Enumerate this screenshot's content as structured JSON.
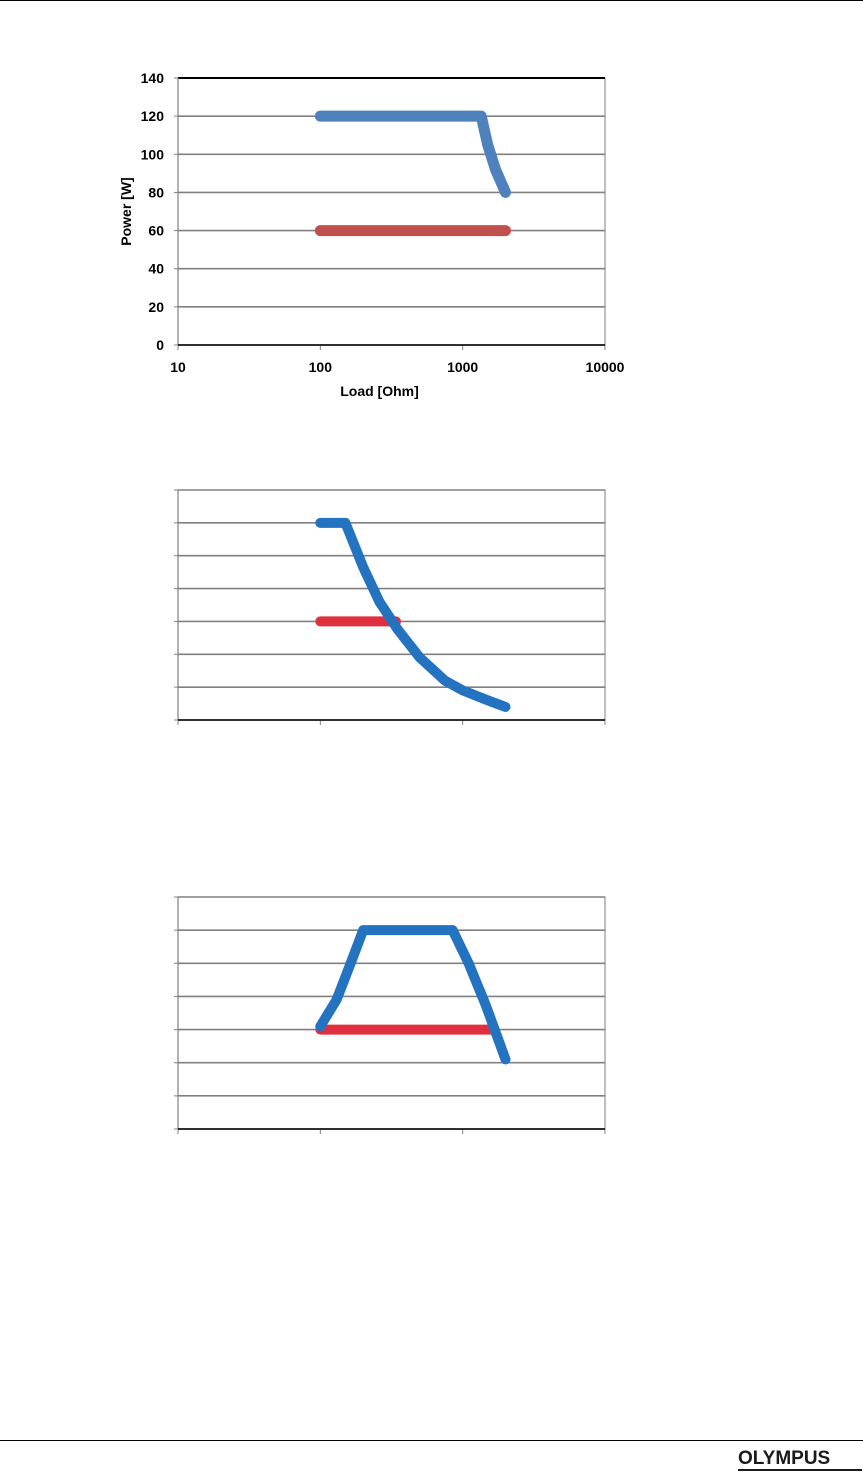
{
  "logo": {
    "text": "OLYMPUS"
  },
  "chart_data": [
    {
      "type": "line",
      "xscale": "log",
      "xlim": [
        10,
        10000
      ],
      "ylim": [
        0,
        140
      ],
      "yticks": [
        0,
        20,
        40,
        60,
        80,
        100,
        120,
        140
      ],
      "xticks": [
        10,
        100,
        1000,
        10000
      ],
      "xtick_labels": [
        "10",
        "100",
        "1000",
        "10000"
      ],
      "ytick_labels": [
        "0",
        "20",
        "40",
        "60",
        "80",
        "100",
        "120",
        "140"
      ],
      "xlabel": "Load [Ohm]",
      "ylabel": "Power [W]",
      "grid": true,
      "series": [
        {
          "color": "#4f81bd",
          "x": [
            100,
            1350,
            1500,
            1700,
            2000
          ],
          "y": [
            120,
            120,
            105,
            92,
            80
          ]
        },
        {
          "color": "#c0504d",
          "x": [
            100,
            2000
          ],
          "y": [
            60,
            60
          ]
        }
      ]
    },
    {
      "type": "line",
      "xscale": "log",
      "xlim": [
        10,
        10000
      ],
      "ylim": [
        0,
        140
      ],
      "yticks": [
        0,
        20,
        40,
        60,
        80,
        100,
        120,
        140
      ],
      "xticks": [
        10,
        100,
        1000,
        10000
      ],
      "grid": true,
      "series": [
        {
          "color": "#2373c0",
          "x": [
            100,
            150,
            200,
            260,
            350,
            500,
            750,
            1000,
            1500,
            2000
          ],
          "y": [
            120,
            120,
            93,
            72,
            55,
            38,
            24,
            18,
            12,
            8
          ]
        },
        {
          "color": "#e0303f",
          "x": [
            100,
            340
          ],
          "y": [
            60,
            60
          ]
        }
      ]
    },
    {
      "type": "line",
      "xscale": "log",
      "xlim": [
        10,
        10000
      ],
      "ylim": [
        0,
        140
      ],
      "yticks": [
        0,
        20,
        40,
        60,
        80,
        100,
        120,
        140
      ],
      "xticks": [
        10,
        100,
        1000,
        10000
      ],
      "grid": true,
      "series": [
        {
          "color": "#2373c0",
          "x": [
            100,
            130,
            160,
            200,
            500,
            850,
            1100,
            1450,
            2000
          ],
          "y": [
            62,
            78,
            98,
            120,
            120,
            120,
            100,
            75,
            42
          ]
        },
        {
          "color": "#e0303f",
          "x": [
            100,
            1580
          ],
          "y": [
            60,
            60
          ]
        }
      ]
    }
  ]
}
